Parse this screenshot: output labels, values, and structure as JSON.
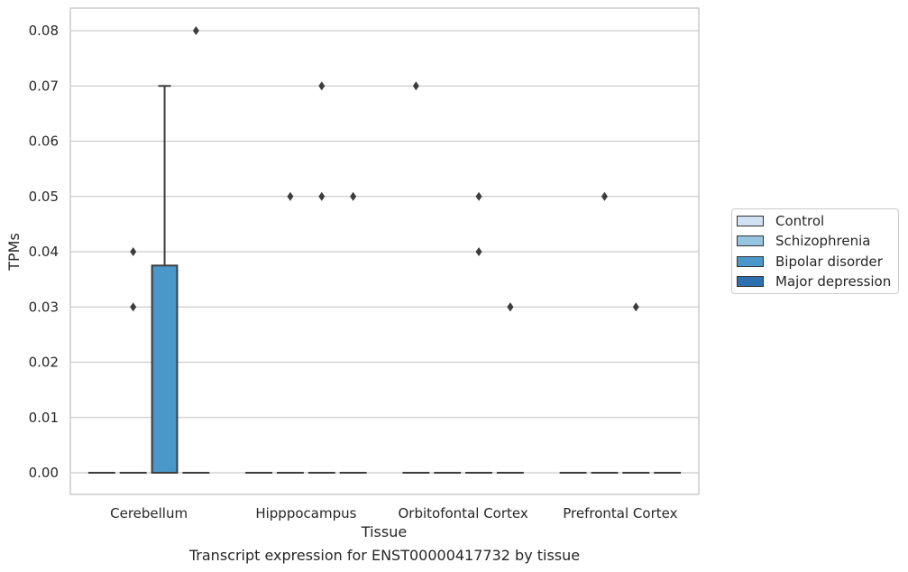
{
  "chart_data": {
    "type": "box",
    "title": "",
    "caption": "Transcript expression for ENST00000417732 by tissue",
    "xlabel": "Tissue",
    "ylabel": "TPMs",
    "ylim": [
      -0.004,
      0.084
    ],
    "yticks": [
      0.0,
      0.01,
      0.02,
      0.03,
      0.04,
      0.05,
      0.06,
      0.07,
      0.08
    ],
    "ytick_labels": [
      "0.00",
      "0.01",
      "0.02",
      "0.03",
      "0.04",
      "0.05",
      "0.06",
      "0.07",
      "0.08"
    ],
    "grid": "horizontal",
    "legend_position": "right",
    "categories": [
      "Cerebellum",
      "Hipppocampus",
      "Orbitofontal Cortex",
      "Prefrontal Cortex"
    ],
    "series": [
      {
        "name": "Control",
        "color": "#d0e1f2",
        "boxes": [
          {
            "q1": 0,
            "median": 0,
            "q3": 0,
            "whisker_low": 0,
            "whisker_high": 0,
            "outliers": []
          },
          {
            "q1": 0,
            "median": 0,
            "q3": 0,
            "whisker_low": 0,
            "whisker_high": 0,
            "outliers": []
          },
          {
            "q1": 0,
            "median": 0,
            "q3": 0,
            "whisker_low": 0,
            "whisker_high": 0,
            "outliers": [
              0.07
            ]
          },
          {
            "q1": 0,
            "median": 0,
            "q3": 0,
            "whisker_low": 0,
            "whisker_high": 0,
            "outliers": []
          }
        ]
      },
      {
        "name": "Schizophrenia",
        "color": "#94c4df",
        "boxes": [
          {
            "q1": 0,
            "median": 0,
            "q3": 0,
            "whisker_low": 0,
            "whisker_high": 0,
            "outliers": [
              0.04,
              0.03
            ]
          },
          {
            "q1": 0,
            "median": 0,
            "q3": 0,
            "whisker_low": 0,
            "whisker_high": 0,
            "outliers": [
              0.05
            ]
          },
          {
            "q1": 0,
            "median": 0,
            "q3": 0,
            "whisker_low": 0,
            "whisker_high": 0,
            "outliers": []
          },
          {
            "q1": 0,
            "median": 0,
            "q3": 0,
            "whisker_low": 0,
            "whisker_high": 0,
            "outliers": [
              0.05
            ]
          }
        ]
      },
      {
        "name": "Bipolar disorder",
        "color": "#4a98c9",
        "boxes": [
          {
            "q1": 0,
            "median": 0,
            "q3": 0.0375,
            "whisker_low": 0,
            "whisker_high": 0.07,
            "outliers": []
          },
          {
            "q1": 0,
            "median": 0,
            "q3": 0,
            "whisker_low": 0,
            "whisker_high": 0,
            "outliers": [
              0.07,
              0.05
            ]
          },
          {
            "q1": 0,
            "median": 0,
            "q3": 0,
            "whisker_low": 0,
            "whisker_high": 0,
            "outliers": [
              0.05,
              0.04
            ]
          },
          {
            "q1": 0,
            "median": 0,
            "q3": 0,
            "whisker_low": 0,
            "whisker_high": 0,
            "outliers": [
              0.03
            ]
          }
        ]
      },
      {
        "name": "Major depression",
        "color": "#2e6fb0",
        "boxes": [
          {
            "q1": 0,
            "median": 0,
            "q3": 0,
            "whisker_low": 0,
            "whisker_high": 0,
            "outliers": [
              0.08
            ]
          },
          {
            "q1": 0,
            "median": 0,
            "q3": 0,
            "whisker_low": 0,
            "whisker_high": 0,
            "outliers": [
              0.05
            ]
          },
          {
            "q1": 0,
            "median": 0,
            "q3": 0,
            "whisker_low": 0,
            "whisker_high": 0,
            "outliers": [
              0.03,
              0.03
            ]
          },
          {
            "q1": 0,
            "median": 0,
            "q3": 0,
            "whisker_low": 0,
            "whisker_high": 0,
            "outliers": []
          }
        ]
      }
    ]
  }
}
